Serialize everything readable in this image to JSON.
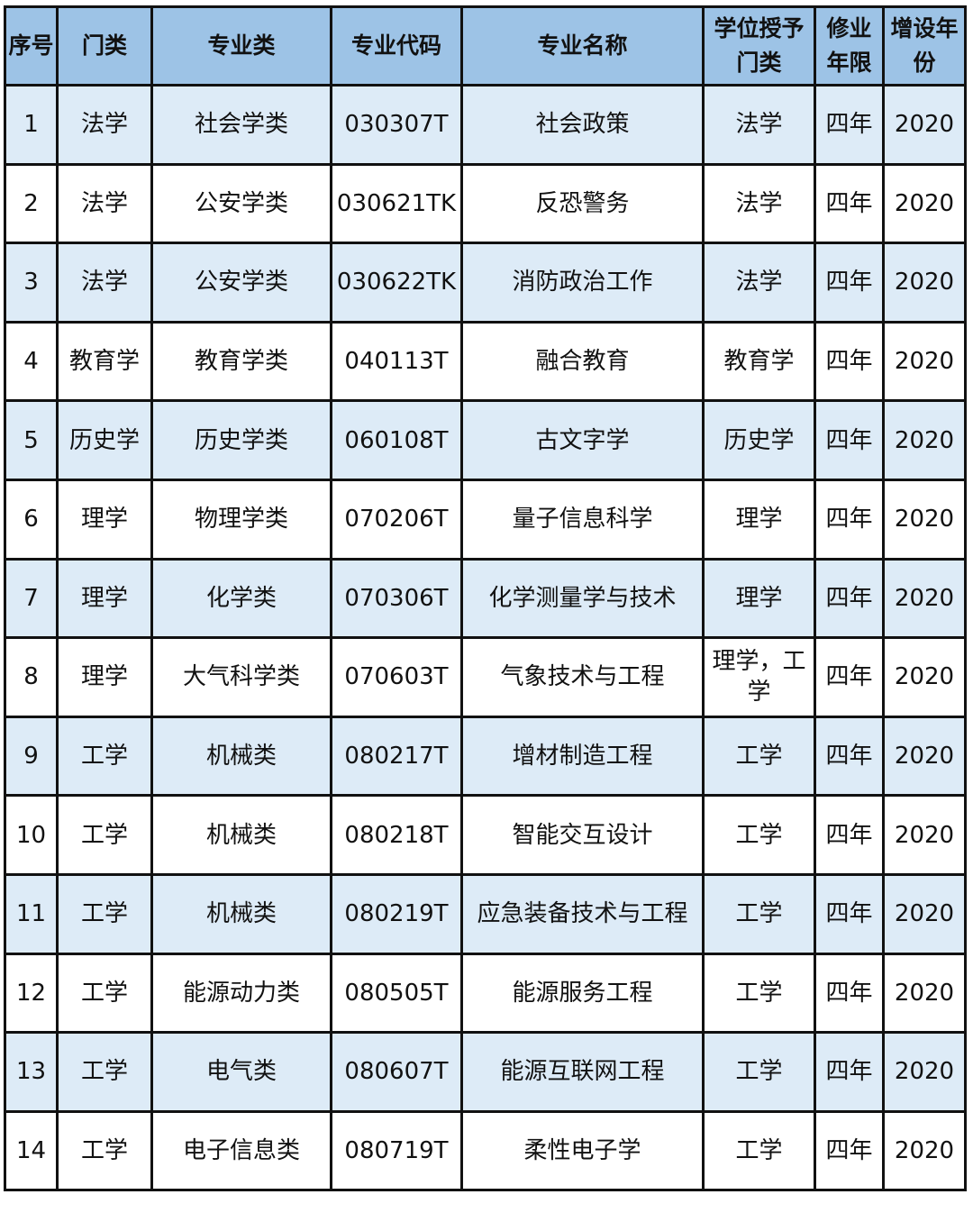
{
  "table": {
    "headers": [
      "序号",
      "门类",
      "专业类",
      "专业代码",
      "专业名称",
      "学位授予门类",
      "修业年限",
      "增设年份"
    ],
    "rows": [
      [
        "1",
        "法学",
        "社会学类",
        "030307T",
        "社会政策",
        "法学",
        "四年",
        "2020"
      ],
      [
        "2",
        "法学",
        "公安学类",
        "030621TK",
        "反恐警务",
        "法学",
        "四年",
        "2020"
      ],
      [
        "3",
        "法学",
        "公安学类",
        "030622TK",
        "消防政治工作",
        "法学",
        "四年",
        "2020"
      ],
      [
        "4",
        "教育学",
        "教育学类",
        "040113T",
        "融合教育",
        "教育学",
        "四年",
        "2020"
      ],
      [
        "5",
        "历史学",
        "历史学类",
        "060108T",
        "古文字学",
        "历史学",
        "四年",
        "2020"
      ],
      [
        "6",
        "理学",
        "物理学类",
        "070206T",
        "量子信息科学",
        "理学",
        "四年",
        "2020"
      ],
      [
        "7",
        "理学",
        "化学类",
        "070306T",
        "化学测量学与技术",
        "理学",
        "四年",
        "2020"
      ],
      [
        "8",
        "理学",
        "大气科学类",
        "070603T",
        "气象技术与工程",
        "理学，工学",
        "四年",
        "2020"
      ],
      [
        "9",
        "工学",
        "机械类",
        "080217T",
        "增材制造工程",
        "工学",
        "四年",
        "2020"
      ],
      [
        "10",
        "工学",
        "机械类",
        "080218T",
        "智能交互设计",
        "工学",
        "四年",
        "2020"
      ],
      [
        "11",
        "工学",
        "机械类",
        "080219T",
        "应急装备技术与工程",
        "工学",
        "四年",
        "2020"
      ],
      [
        "12",
        "工学",
        "能源动力类",
        "080505T",
        "能源服务工程",
        "工学",
        "四年",
        "2020"
      ],
      [
        "13",
        "工学",
        "电气类",
        "080607T",
        "能源互联网工程",
        "工学",
        "四年",
        "2020"
      ],
      [
        "14",
        "工学",
        "电子信息类",
        "080719T",
        "柔性电子学",
        "工学",
        "四年",
        "2020"
      ]
    ]
  },
  "colors": {
    "header_bg": "#9dc3e6",
    "stripe_bg": "#ddebf7",
    "border": "#111111"
  }
}
